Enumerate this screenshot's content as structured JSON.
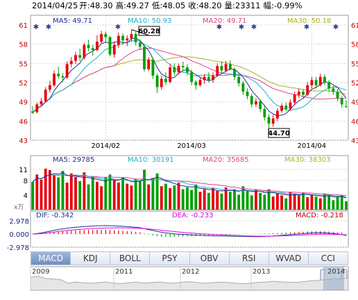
{
  "header": {
    "date": "2014/04/25",
    "open_label": "开:",
    "open": "48.30",
    "high_label": "高:",
    "high": "49.27",
    "low_label": "低:",
    "low": "48.05",
    "close_label": "收:",
    "close": "48.20",
    "volume_label": "量:",
    "volume": "23311",
    "change_label": "幅:",
    "change": "-0.99%"
  },
  "colors": {
    "up": "#e8000b",
    "down": "#00a000",
    "ma5": "#1e2d8c",
    "ma10": "#1ab0c8",
    "ma20": "#e0408a",
    "ma30": "#a8b020",
    "grid": "#d7d7d7",
    "axis_label": "#c00000"
  },
  "legend_price": {
    "ma5": "MA5: 49.71",
    "ma10": "MA10: 50.93",
    "ma20": "MA20: 49.71",
    "ma30": "MA30: 50.18"
  },
  "legend_volume": {
    "ma5": "MA5: 29785",
    "ma10": "MA10: 30191",
    "ma20": "MA20: 35685",
    "ma30": "MA30: 38303"
  },
  "volume_unit": "x万",
  "macd_legend": {
    "dif": "DIF: -0.342",
    "dea": "DEA: -0.233",
    "macd": "MACD: -0.218"
  },
  "annotations": {
    "high_label": "60.28",
    "low_label": "44.70"
  },
  "tabs": [
    "MACD",
    "KDJ",
    "BOLL",
    "PSY",
    "OBV",
    "RSI",
    "WVAD",
    "CCI"
  ],
  "active_tab": "MACD",
  "navigator_years": [
    "2009",
    "2011",
    "2012",
    "2013",
    "2014"
  ],
  "chart_data": [
    {
      "type": "candlestick",
      "panel": "price",
      "y_ticks": [
        43,
        46,
        49,
        52,
        55,
        58,
        61
      ],
      "ylim": [
        43,
        61
      ],
      "x_tick_labels": [
        "2014/02",
        "2014/03",
        "2014/04"
      ],
      "x_tick_index": [
        17,
        37,
        65
      ],
      "candles": [
        [
          47.5,
          47.3,
          48.3,
          47.1
        ],
        [
          47.4,
          48.6,
          48.9,
          47.2
        ],
        [
          48.6,
          49.1,
          49.6,
          48.4
        ],
        [
          49.1,
          50.9,
          51.3,
          48.9
        ],
        [
          50.9,
          51.6,
          52.3,
          50.5
        ],
        [
          51.6,
          53.4,
          53.9,
          51.3
        ],
        [
          53.4,
          53.0,
          54.5,
          52.6
        ],
        [
          53.0,
          52.8,
          53.5,
          52.1
        ],
        [
          52.8,
          54.9,
          55.3,
          52.6
        ],
        [
          54.9,
          55.4,
          56.0,
          54.4
        ],
        [
          55.4,
          56.3,
          56.8,
          54.9
        ],
        [
          56.3,
          55.9,
          57.3,
          55.4
        ],
        [
          55.9,
          57.9,
          58.2,
          55.6
        ],
        [
          57.9,
          57.4,
          58.7,
          56.9
        ],
        [
          57.4,
          57.1,
          57.9,
          56.2
        ],
        [
          57.1,
          58.4,
          59.4,
          56.9
        ],
        [
          58.4,
          59.6,
          60.1,
          58.1
        ],
        [
          59.6,
          59.1,
          60.0,
          58.2
        ],
        [
          59.1,
          56.4,
          59.3,
          56.1
        ],
        [
          56.4,
          57.9,
          58.4,
          55.9
        ],
        [
          57.9,
          59.3,
          59.8,
          57.4
        ],
        [
          59.3,
          58.6,
          59.7,
          57.9
        ],
        [
          58.6,
          58.9,
          59.4,
          57.7
        ],
        [
          58.9,
          59.6,
          60.28,
          58.4
        ],
        [
          59.6,
          58.3,
          59.9,
          57.8
        ],
        [
          58.3,
          57.6,
          58.7,
          57.1
        ],
        [
          57.6,
          54.1,
          57.9,
          53.7
        ],
        [
          54.1,
          55.6,
          56.0,
          53.8
        ],
        [
          55.6,
          53.1,
          55.9,
          52.6
        ],
        [
          53.1,
          51.3,
          53.4,
          50.4
        ],
        [
          51.3,
          52.6,
          53.1,
          50.9
        ],
        [
          52.6,
          52.1,
          53.6,
          51.6
        ],
        [
          52.1,
          54.4,
          54.9,
          51.9
        ],
        [
          54.4,
          53.6,
          55.0,
          53.1
        ],
        [
          53.6,
          54.6,
          55.0,
          53.3
        ],
        [
          54.6,
          54.4,
          55.3,
          53.8
        ],
        [
          54.4,
          53.6,
          54.9,
          53.1
        ],
        [
          53.6,
          52.1,
          54.0,
          51.6
        ],
        [
          52.1,
          51.6,
          52.4,
          50.9
        ],
        [
          51.6,
          52.4,
          52.9,
          51.4
        ],
        [
          52.4,
          52.9,
          53.3,
          51.8
        ],
        [
          52.9,
          52.4,
          53.6,
          52.0
        ],
        [
          52.4,
          53.1,
          53.6,
          52.0
        ],
        [
          53.1,
          54.6,
          55.0,
          52.9
        ],
        [
          54.6,
          53.9,
          55.3,
          53.4
        ],
        [
          53.9,
          54.9,
          55.4,
          53.6
        ],
        [
          54.9,
          54.1,
          55.5,
          53.9
        ],
        [
          54.1,
          52.9,
          54.4,
          52.4
        ],
        [
          52.9,
          51.9,
          53.3,
          51.4
        ],
        [
          51.9,
          50.6,
          52.3,
          50.1
        ],
        [
          50.6,
          49.9,
          51.1,
          49.4
        ],
        [
          49.9,
          48.6,
          50.3,
          48.1
        ],
        [
          48.6,
          49.1,
          49.6,
          48.2
        ],
        [
          49.1,
          47.9,
          49.4,
          47.4
        ],
        [
          47.9,
          46.6,
          48.3,
          46.1
        ],
        [
          46.6,
          45.6,
          47.1,
          44.7
        ],
        [
          45.6,
          46.4,
          47.0,
          45.1
        ],
        [
          46.4,
          47.6,
          48.0,
          46.0
        ],
        [
          47.6,
          48.4,
          48.8,
          47.3
        ],
        [
          48.4,
          47.9,
          48.9,
          47.5
        ],
        [
          47.9,
          48.9,
          49.4,
          47.6
        ],
        [
          48.9,
          50.1,
          50.6,
          48.6
        ],
        [
          50.1,
          50.6,
          51.1,
          49.6
        ],
        [
          50.6,
          50.1,
          51.0,
          49.6
        ],
        [
          50.1,
          51.6,
          52.1,
          49.9
        ],
        [
          51.6,
          52.4,
          52.9,
          51.1
        ],
        [
          52.4,
          51.6,
          52.9,
          51.1
        ],
        [
          51.6,
          52.9,
          53.4,
          51.4
        ],
        [
          52.9,
          52.1,
          53.3,
          51.6
        ],
        [
          52.1,
          51.1,
          52.4,
          50.6
        ],
        [
          51.1,
          50.6,
          51.5,
          50.1
        ],
        [
          50.6,
          49.6,
          51.0,
          49.1
        ],
        [
          49.6,
          48.6,
          49.9,
          48.1
        ],
        [
          48.3,
          48.2,
          49.27,
          48.05
        ]
      ]
    },
    {
      "type": "bar",
      "panel": "volume",
      "unit": "x万",
      "y_ticks": [
        4,
        8,
        11
      ],
      "ylim": [
        0,
        12.5
      ],
      "values": [
        7.6,
        9.6,
        8.2,
        11.2,
        10.8,
        9.4,
        8.8,
        10.6,
        7.4,
        9.9,
        8.9,
        7.8,
        10.2,
        6.9,
        9.1,
        7.6,
        6.4,
        8.8,
        9.6,
        8.1,
        7.4,
        8.9,
        7.1,
        6.6,
        8.4,
        7.9,
        10.9,
        6.9,
        8.6,
        9.9,
        6.4,
        7.1,
        5.9,
        6.6,
        7.4,
        5.6,
        6.1,
        5.4,
        6.9,
        4.9,
        5.6,
        4.6,
        5.9,
        5.1,
        4.4,
        6.1,
        4.9,
        5.6,
        4.1,
        6.4,
        5.1,
        3.9,
        5.4,
        4.6,
        4.1,
        5.6,
        3.6,
        4.4,
        3.9,
        3.1,
        4.9,
        4.4,
        3.9,
        4.6,
        3.4,
        4.1,
        3.6,
        3.1,
        4.4,
        3.9,
        2.6,
        3.4,
        3.9,
        2.3
      ]
    },
    {
      "type": "bar",
      "panel": "macd",
      "y_ticks": [
        2.978,
        0.0,
        -2.978
      ],
      "ylim": [
        -2.978,
        2.978
      ],
      "values": [
        -0.05,
        0.02,
        0.1,
        0.2,
        0.3,
        0.4,
        0.5,
        0.6,
        0.68,
        0.75,
        0.8,
        0.85,
        0.9,
        0.92,
        0.95,
        0.97,
        0.99,
        0.98,
        0.9,
        0.85,
        0.8,
        0.72,
        0.65,
        0.58,
        0.5,
        0.38,
        0.1,
        -0.1,
        -0.3,
        -0.5,
        -0.6,
        -0.65,
        -0.62,
        -0.6,
        -0.55,
        -0.52,
        -0.5,
        -0.48,
        -0.45,
        -0.4,
        -0.36,
        -0.32,
        -0.28,
        -0.22,
        -0.18,
        -0.14,
        -0.1,
        -0.08,
        -0.06,
        -0.04,
        -0.02,
        0.0,
        0.02,
        0.05,
        0.1,
        0.12,
        0.16,
        0.2,
        0.25,
        0.3,
        0.35,
        0.4,
        0.45,
        0.5,
        0.55,
        0.6,
        0.62,
        0.64,
        0.6,
        0.55,
        0.5,
        0.4,
        0.3,
        -0.218
      ],
      "dif": [
        0.0,
        0.1,
        0.25,
        0.45,
        0.65,
        0.85,
        1.02,
        1.18,
        1.3,
        1.42,
        1.52,
        1.6,
        1.68,
        1.74,
        1.8,
        1.84,
        1.88,
        1.9,
        1.88,
        1.84,
        1.8,
        1.74,
        1.68,
        1.6,
        1.52,
        1.42,
        1.22,
        1.0,
        0.8,
        0.58,
        0.4,
        0.25,
        0.15,
        0.05,
        -0.02,
        -0.08,
        -0.14,
        -0.2,
        -0.25,
        -0.3,
        -0.34,
        -0.38,
        -0.4,
        -0.42,
        -0.44,
        -0.46,
        -0.48,
        -0.5,
        -0.52,
        -0.54,
        -0.56,
        -0.58,
        -0.6,
        -0.58,
        -0.54,
        -0.5,
        -0.44,
        -0.38,
        -0.3,
        -0.22,
        -0.14,
        -0.06,
        0.02,
        0.1,
        0.18,
        0.24,
        0.28,
        0.3,
        0.26,
        0.2,
        0.1,
        0.0,
        -0.15,
        -0.342
      ],
      "dea": [
        0.0,
        0.05,
        0.12,
        0.22,
        0.34,
        0.46,
        0.58,
        0.7,
        0.8,
        0.9,
        0.98,
        1.06,
        1.12,
        1.18,
        1.24,
        1.28,
        1.32,
        1.36,
        1.38,
        1.4,
        1.41,
        1.4,
        1.38,
        1.35,
        1.32,
        1.28,
        1.22,
        1.14,
        1.05,
        0.95,
        0.85,
        0.75,
        0.65,
        0.55,
        0.46,
        0.38,
        0.3,
        0.22,
        0.15,
        0.08,
        0.02,
        -0.04,
        -0.1,
        -0.15,
        -0.2,
        -0.24,
        -0.28,
        -0.32,
        -0.36,
        -0.4,
        -0.43,
        -0.46,
        -0.48,
        -0.49,
        -0.49,
        -0.48,
        -0.46,
        -0.44,
        -0.41,
        -0.38,
        -0.34,
        -0.3,
        -0.26,
        -0.22,
        -0.18,
        -0.14,
        -0.1,
        -0.07,
        -0.05,
        -0.05,
        -0.07,
        -0.1,
        -0.16,
        -0.233
      ]
    },
    {
      "type": "area",
      "panel": "navigator",
      "x_tick_labels": [
        "2009",
        "2011",
        "2012",
        "2013",
        "2014"
      ],
      "values": [
        0.55,
        0.6,
        0.5,
        0.48,
        0.45,
        0.3,
        0.35,
        0.32,
        0.3,
        0.33,
        0.35,
        0.3,
        0.28,
        0.32,
        0.35,
        0.3,
        0.33,
        0.35,
        0.32,
        0.3,
        0.34,
        0.36,
        0.33,
        0.3,
        0.32,
        0.35,
        0.33,
        0.3,
        0.28,
        0.3,
        0.33,
        0.35,
        0.38,
        0.36,
        0.34,
        0.33,
        0.36,
        0.4,
        0.42,
        0.45,
        0.5,
        0.48,
        0.52
      ]
    }
  ]
}
